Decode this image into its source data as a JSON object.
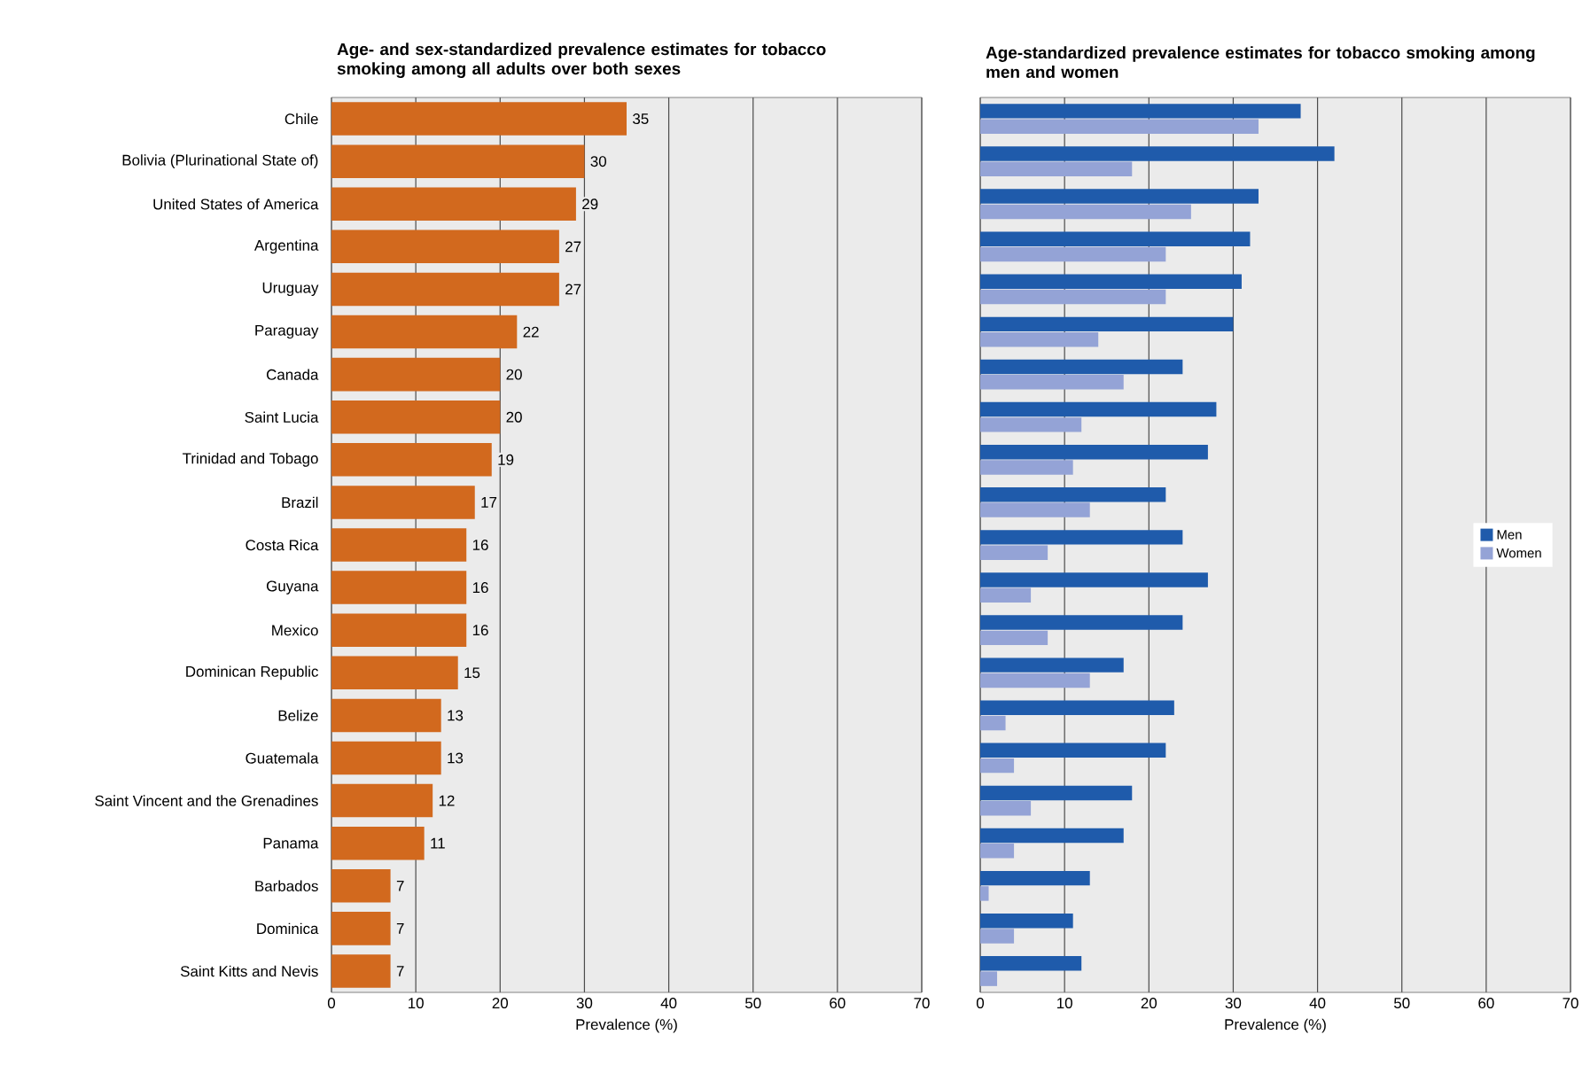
{
  "chart_data": [
    {
      "type": "bar",
      "orientation": "horizontal",
      "title": "Age- and sex-standardized prevalence estimates for tobacco smoking among all adults over both sexes",
      "xlabel": "Prevalence (%)",
      "categories": [
        "Chile",
        "Bolivia (Plurinational State of)",
        "United States of America",
        "Argentina",
        "Uruguay",
        "Paraguay",
        "Canada",
        "Saint Lucia",
        "Trinidad and Tobago",
        "Brazil",
        "Costa Rica",
        "Guyana",
        "Mexico",
        "Dominican Republic",
        "Belize",
        "Guatemala",
        "Saint Vincent and the Grenadines",
        "Panama",
        "Barbados",
        "Dominica",
        "Saint Kitts and Nevis"
      ],
      "values": [
        35,
        30,
        29,
        27,
        27,
        22,
        20,
        20,
        19,
        17,
        16,
        16,
        16,
        15,
        13,
        13,
        12,
        11,
        7,
        7,
        7
      ],
      "color": "#d2691e",
      "data_labels": true,
      "xlim": [
        0,
        70
      ],
      "xticks": [
        0,
        10,
        20,
        30,
        40,
        50,
        60,
        70
      ],
      "grid": "x"
    },
    {
      "type": "bar",
      "orientation": "horizontal",
      "title": "Age-standardized prevalence estimates for tobacco smoking among men and women",
      "xlabel": "Prevalence (%)",
      "categories": [
        null,
        null,
        null,
        null,
        null,
        null,
        null,
        null,
        null,
        null,
        null,
        null,
        null,
        null,
        null,
        null,
        null,
        null,
        null,
        null,
        null
      ],
      "series": [
        {
          "name": "Men",
          "color": "#1f5bab",
          "values": [
            38,
            42,
            33,
            32,
            31,
            30,
            24,
            28,
            27,
            22,
            24,
            27,
            24,
            17,
            23,
            22,
            18,
            17,
            13,
            11,
            12
          ]
        },
        {
          "name": "Women",
          "color": "#94a3d6",
          "values": [
            33,
            18,
            25,
            22,
            22,
            14,
            17,
            12,
            11,
            13,
            8,
            6,
            8,
            13,
            3,
            4,
            6,
            4,
            1,
            4,
            2
          ]
        }
      ],
      "tick_labels": "x",
      "legend": "right",
      "xlim": [
        0,
        70
      ],
      "xticks": [
        0,
        10,
        20,
        30,
        40,
        50,
        60,
        70
      ],
      "grid": "x"
    }
  ]
}
